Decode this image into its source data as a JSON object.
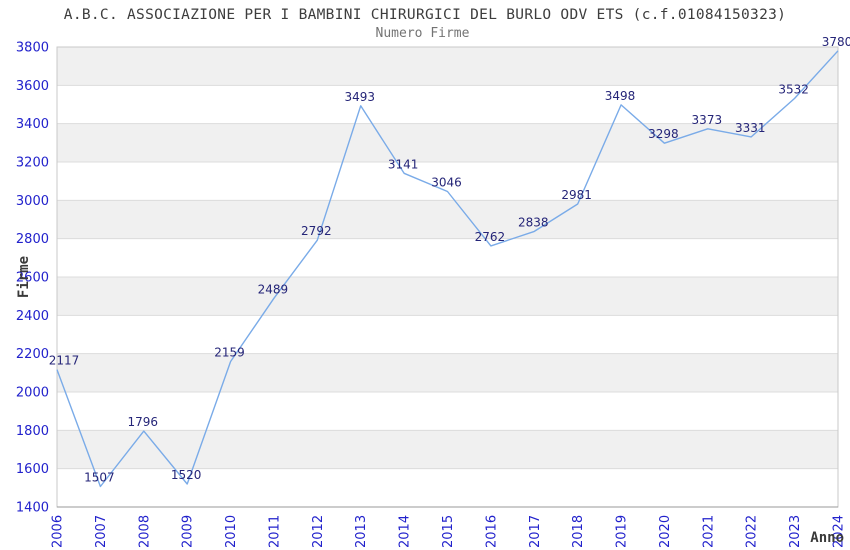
{
  "header": {
    "title": "A.B.C. ASSOCIAZIONE PER I BAMBINI CHIRURGICI DEL BURLO ODV ETS (c.f.01084150323)",
    "subtitle": "Numero Firme"
  },
  "chart_data": {
    "type": "line",
    "title": "A.B.C. ASSOCIAZIONE PER I BAMBINI CHIRURGICI DEL BURLO ODV ETS (c.f.01084150323)",
    "subtitle": "Numero Firme",
    "xlabel": "Anno",
    "ylabel": "Firme",
    "categories": [
      "2006",
      "2007",
      "2008",
      "2009",
      "2010",
      "2011",
      "2012",
      "2013",
      "2014",
      "2015",
      "2016",
      "2017",
      "2018",
      "2019",
      "2020",
      "2021",
      "2022",
      "2023",
      "2024"
    ],
    "values": [
      2117,
      1507,
      1796,
      1520,
      2159,
      2489,
      2792,
      3493,
      3141,
      3046,
      2762,
      2838,
      2981,
      3498,
      3298,
      3373,
      3331,
      3532,
      3780
    ],
    "ylim": [
      1400,
      3800
    ],
    "ytick_step": 200,
    "grid": true,
    "data_labels_shown": true,
    "legend_position": "none",
    "colors": {
      "line": "#7aabe8",
      "tick_labels": "#2222cc",
      "data_labels": "#252578",
      "band_gray": "#f0f0f0",
      "band_white": "#ffffff",
      "gridline": "#dcdcdc",
      "plot_border": "#c9c9c9",
      "x_axis_line": "#999999",
      "title_color": "#3d3d3d",
      "subtitle_color": "#737373",
      "axis_title_color": "#3a3a3a"
    }
  }
}
